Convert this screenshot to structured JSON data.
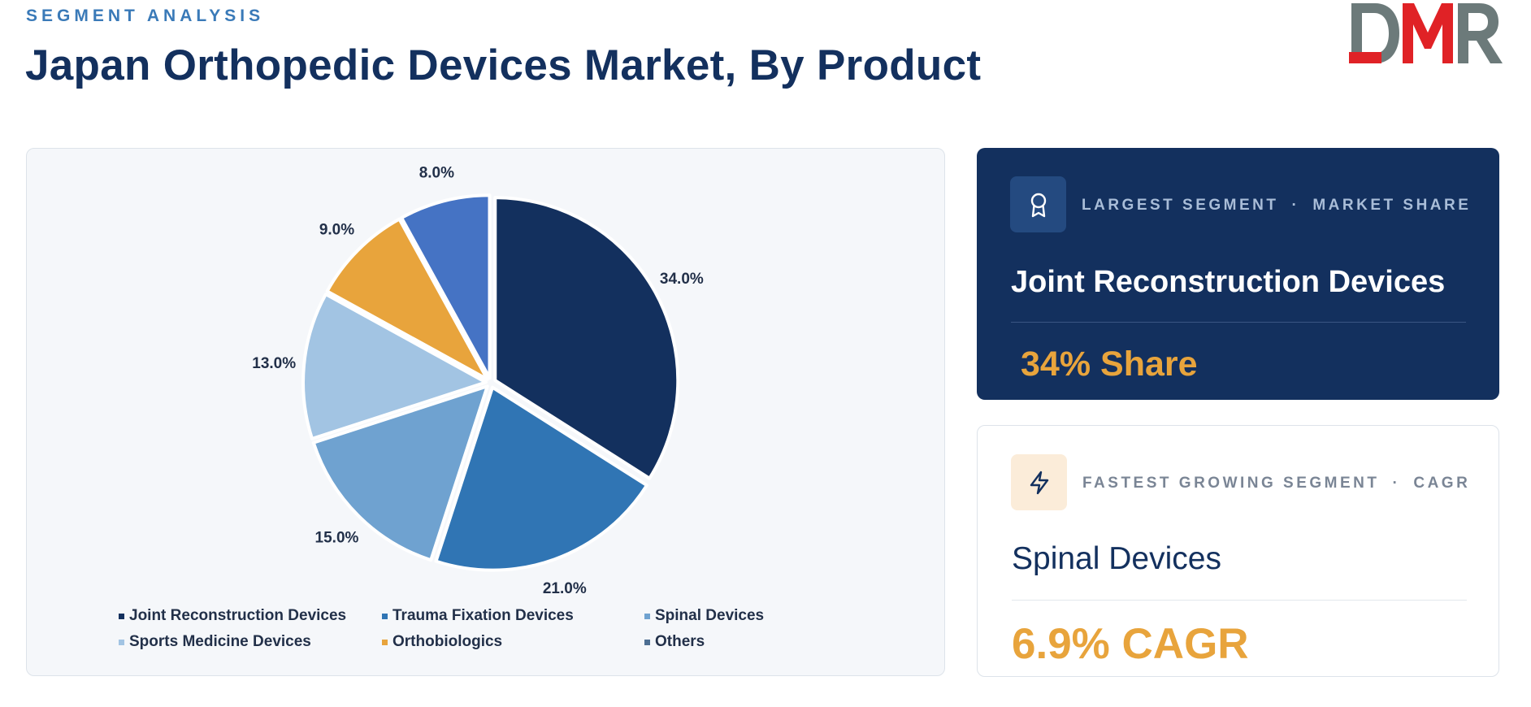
{
  "header": {
    "eyebrow": "SEGMENT ANALYSIS",
    "title": "Japan Orthopedic Devices Market, By Product",
    "logo_text": "DMR"
  },
  "chart_data": {
    "type": "pie",
    "title": "",
    "categories": [
      "Joint Reconstruction Devices",
      "Trauma Fixation Devices",
      "Spinal Devices",
      "Sports Medicine Devices",
      "Orthobiologics",
      "Others"
    ],
    "values": [
      34.0,
      21.0,
      15.0,
      13.0,
      9.0,
      8.0
    ],
    "value_labels": [
      "34.0%",
      "21.0%",
      "15.0%",
      "13.0%",
      "9.0%",
      "8.0%"
    ],
    "colors": [
      "#13305e",
      "#3075b4",
      "#6fa2d0",
      "#a2c4e3",
      "#e8a43c",
      "#4573c4"
    ],
    "legend": "bottom",
    "legend_items": [
      {
        "label": "Joint Reconstruction Devices",
        "color": "#13305e"
      },
      {
        "label": "Trauma Fixation Devices",
        "color": "#3075b4"
      },
      {
        "label": "Spinal Devices",
        "color": "#6fa2d0"
      },
      {
        "label": "Sports Medicine Devices",
        "color": "#a2c4e3"
      },
      {
        "label": "Orthobiologics",
        "color": "#e8a43c"
      },
      {
        "label": "Others",
        "color": "#4d6e92"
      }
    ]
  },
  "cards": {
    "largest": {
      "meta_left": "LARGEST SEGMENT",
      "separator": "·",
      "meta_right": "MARKET SHARE",
      "segment": "Joint Reconstruction Devices",
      "value": "34% Share",
      "icon": "award-icon"
    },
    "fastest": {
      "meta_left": "FASTEST GROWING SEGMENT",
      "separator": "·",
      "meta_right": "CAGR",
      "segment": "Spinal Devices",
      "value": "6.9% CAGR",
      "icon": "lightning-icon"
    }
  },
  "colors": {
    "navy": "#13305e",
    "accent_orange": "#e8a43c",
    "logo_gray": "#6c7a7a",
    "logo_red": "#e02226"
  }
}
